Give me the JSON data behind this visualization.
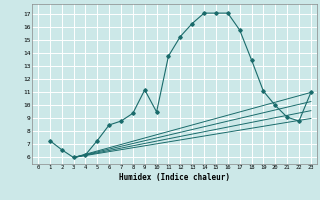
{
  "xlabel": "Humidex (Indice chaleur)",
  "bg_color": "#cce8e8",
  "line_color": "#1a6b6b",
  "grid_color": "#ffffff",
  "xlim": [
    -0.5,
    23.5
  ],
  "ylim": [
    5.5,
    17.8
  ],
  "xticks": [
    0,
    1,
    2,
    3,
    4,
    5,
    6,
    7,
    8,
    9,
    10,
    11,
    12,
    13,
    14,
    15,
    16,
    17,
    18,
    19,
    20,
    21,
    22,
    23
  ],
  "yticks": [
    6,
    7,
    8,
    9,
    10,
    11,
    12,
    13,
    14,
    15,
    16,
    17
  ],
  "line1_x": [
    1,
    2,
    3,
    4,
    5,
    6,
    7,
    8,
    9,
    10,
    11,
    12,
    13,
    14,
    15,
    16,
    17,
    18,
    19,
    20,
    21,
    22,
    23
  ],
  "line1_y": [
    7.3,
    6.6,
    6.0,
    6.2,
    7.3,
    8.5,
    8.8,
    9.4,
    11.2,
    9.5,
    13.8,
    15.3,
    16.3,
    17.1,
    17.1,
    17.1,
    15.8,
    13.5,
    11.1,
    10.0,
    9.1,
    8.8,
    11.0
  ],
  "line2_x": [
    3,
    23
  ],
  "line2_y": [
    6.0,
    11.0
  ],
  "line3_x": [
    3,
    23
  ],
  "line3_y": [
    6.0,
    10.3
  ],
  "line4_x": [
    3,
    23
  ],
  "line4_y": [
    6.0,
    9.6
  ],
  "line5_x": [
    3,
    23
  ],
  "line5_y": [
    6.0,
    9.0
  ]
}
